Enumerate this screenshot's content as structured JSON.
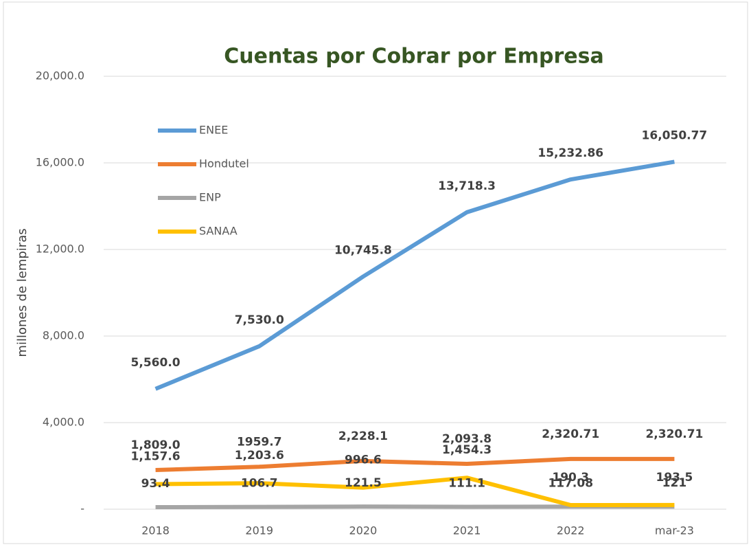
{
  "chart_data": {
    "type": "line",
    "title": "Cuentas por Cobrar por Empresa",
    "y_label": "millones de lempiras",
    "categories": [
      "2018",
      "2019",
      "2020",
      "2021",
      "2022",
      "mar-23"
    ],
    "series": [
      {
        "name": "ENEE",
        "color": "#5b9bd5",
        "values": [
          5560.0,
          7530.0,
          10745.8,
          13718.3,
          15232.86,
          16050.77
        ],
        "value_labels": [
          "5,560.0",
          "7,530.0",
          "10,745.8",
          "13,718.3",
          "15,232.86",
          "16,050.77"
        ]
      },
      {
        "name": "Hondutel",
        "color": "#ed7d31",
        "values": [
          1809.0,
          1959.7,
          2228.1,
          2093.8,
          2320.71,
          2320.71
        ],
        "value_labels": [
          "1,809.0",
          "1959.7",
          "2,228.1",
          "2,093.8",
          "2,320.71",
          "2,320.71"
        ]
      },
      {
        "name": "ENP",
        "color": "#a5a5a5",
        "values": [
          93.4,
          106.7,
          121.5,
          111.1,
          117.08,
          121.0
        ]
      },
      {
        "name": "SANAA",
        "color": "#ffc000",
        "values": [
          1157.6,
          1203.6,
          996.6,
          1454.3,
          190.3,
          193.5
        ],
        "value_labels": [
          "1,157.6",
          "1,203.6",
          "996.6",
          "1,454.3",
          "190.3",
          "193.5"
        ]
      }
    ],
    "ylim": [
      0,
      20000
    ],
    "yticks": [
      {
        "value": 0,
        "label": "-"
      },
      {
        "value": 4000,
        "label": "4,000.0"
      },
      {
        "value": 8000,
        "label": "8,000.0"
      },
      {
        "value": 12000,
        "label": "12,000.0"
      },
      {
        "value": 16000,
        "label": "16,000.0"
      },
      {
        "value": 20000,
        "label": "20,000.0"
      }
    ],
    "grid": true,
    "legend": "upper left"
  }
}
